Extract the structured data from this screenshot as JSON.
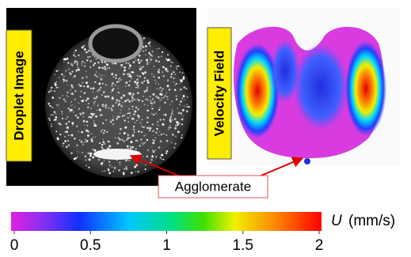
{
  "panels": {
    "left_label": "Droplet Image",
    "right_label": "Velocity Field"
  },
  "annotation": "Agglomerate",
  "colorbar": {
    "symbol": "U",
    "unit": "(mm/s)",
    "lim": [
      0,
      2
    ],
    "ticks": [
      0,
      0.5,
      1,
      1.5,
      2
    ]
  }
}
